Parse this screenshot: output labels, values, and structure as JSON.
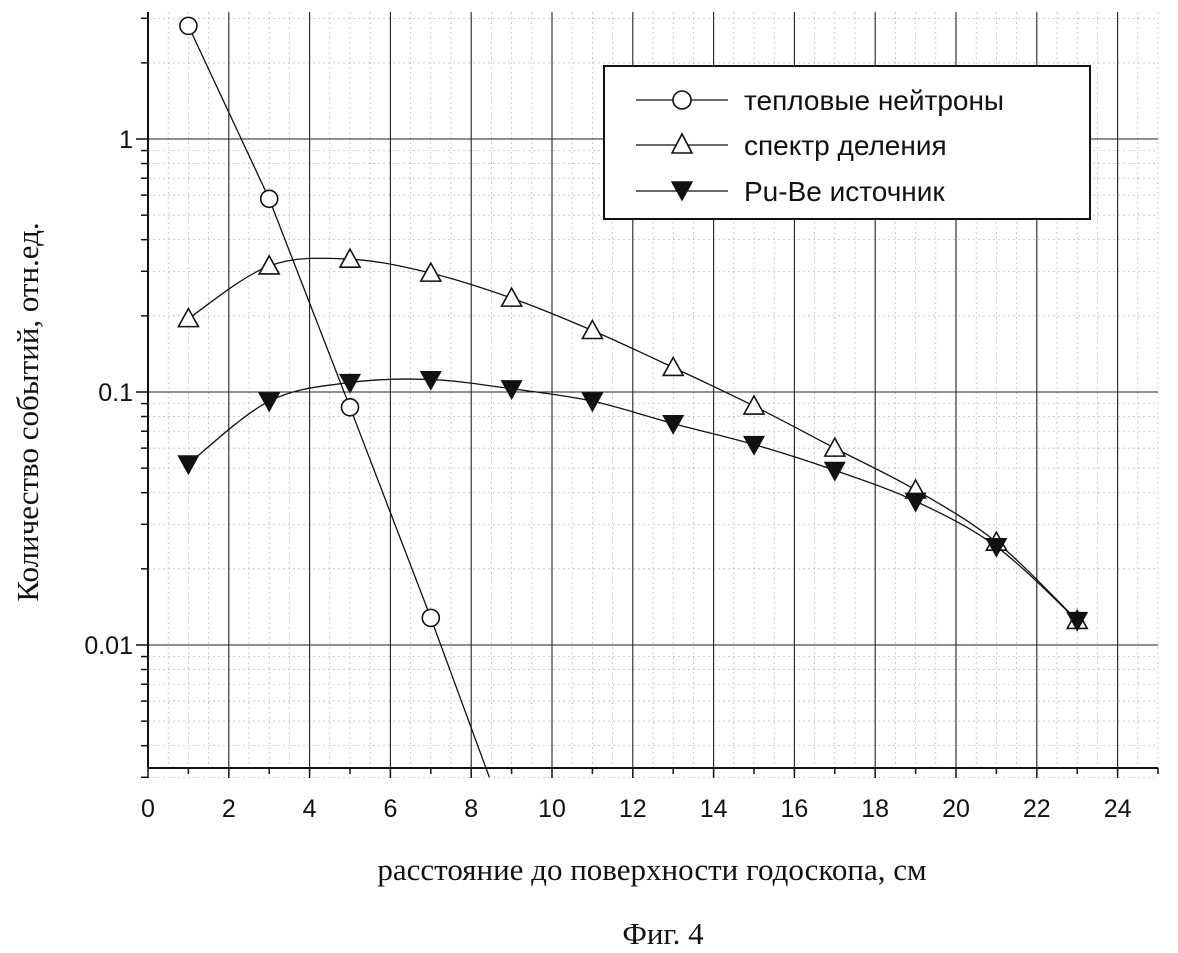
{
  "chart_data": {
    "type": "line",
    "title": "",
    "caption": "Фиг. 4",
    "xlabel": "расстояние до поверхности годоскопа, см",
    "ylabel": "Количество событий, отн.ед.",
    "xlim": [
      0,
      25
    ],
    "ylim": [
      0.003,
      3.2
    ],
    "yscale": "log",
    "grid": true,
    "legend_position": "top-right",
    "x_ticks": [
      0,
      2,
      4,
      6,
      8,
      10,
      12,
      14,
      16,
      18,
      20,
      22,
      24
    ],
    "y_ticks": [
      0.01,
      0.1,
      1
    ],
    "y_tick_labels": [
      "0.01",
      "0.1",
      "1"
    ],
    "series": [
      {
        "name": "тепловые нейтроны",
        "marker": "circle-open",
        "x": [
          1,
          3,
          5,
          7
        ],
        "y": [
          2.8,
          0.58,
          0.087,
          0.0128
        ],
        "fit_end": [
          8.45,
          0.003
        ]
      },
      {
        "name": "спектр деления",
        "marker": "triangle-open",
        "x": [
          1,
          3,
          5,
          7,
          9,
          11,
          13,
          15,
          17,
          19,
          21,
          23
        ],
        "y": [
          0.195,
          0.315,
          0.335,
          0.295,
          0.235,
          0.175,
          0.125,
          0.088,
          0.06,
          0.041,
          0.0255,
          0.0125
        ]
      },
      {
        "name": "Pu-Be источник",
        "marker": "triangle-down-filled",
        "x": [
          1,
          3,
          5,
          7,
          9,
          11,
          13,
          15,
          17,
          19,
          21,
          23
        ],
        "y": [
          0.052,
          0.092,
          0.109,
          0.112,
          0.103,
          0.092,
          0.075,
          0.062,
          0.049,
          0.037,
          0.0245,
          0.0125
        ]
      }
    ]
  }
}
